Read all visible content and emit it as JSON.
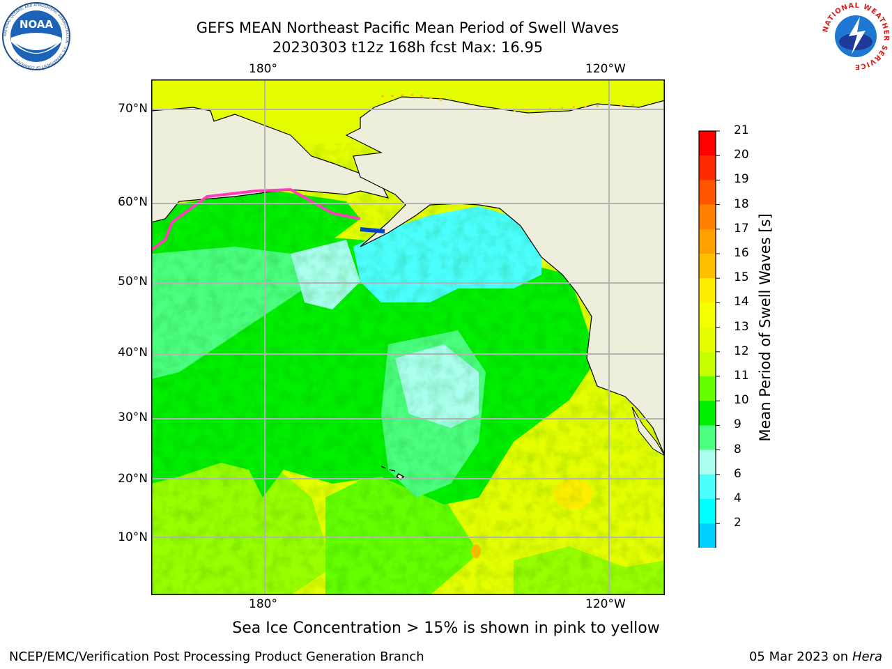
{
  "header": {
    "line1": "GEFS MEAN Northeast Pacific Mean Period of Swell Waves",
    "line2": "20230303 t12z 168h fcst   Max: 16.95"
  },
  "logos": {
    "noaa_text": "NOAA",
    "noaa_ring": "NATIONAL OCEANIC AND ATMOSPHERIC ADMINISTRATION · U.S. DEPARTMENT OF COMMERCE",
    "nws_ring": "NATIONAL WEATHER SERVICE"
  },
  "map": {
    "lon_labels_top": [
      "180°",
      "120°W"
    ],
    "lon_labels_bottom": [
      "180°",
      "120°W"
    ],
    "lat_labels": [
      "70°N",
      "60°N",
      "50°N",
      "40°N",
      "30°N",
      "20°N",
      "10°N"
    ],
    "land_color": "#eeeedd",
    "ice_note": "Sea Ice Concentration > 15% is shown in pink to yellow"
  },
  "colorbar": {
    "label": "Mean Period of Swell Waves [s]",
    "ticks": [
      "21",
      "20",
      "19",
      "18",
      "17",
      "16",
      "15",
      "14",
      "13",
      "12",
      "11",
      "10",
      "9",
      "8",
      "6",
      "4",
      "2"
    ],
    "colors_top_to_bottom": [
      "#ff0000",
      "#ff2a00",
      "#ff5500",
      "#ff7f00",
      "#ff9f00",
      "#ffbf00",
      "#ffee00",
      "#f5ff00",
      "#e6ff00",
      "#c7ff00",
      "#66ff00",
      "#00ee00",
      "#4cff80",
      "#aaffee",
      "#4cffff",
      "#00ffff",
      "#00d0ff",
      "#0077ff"
    ],
    "extend_color": "#0000ff"
  },
  "footer": {
    "left": "NCEP/EMC/Verification Post Processing Product Generation Branch",
    "right_date": "05 Mar 2023 on",
    "right_machine": "Hera"
  }
}
